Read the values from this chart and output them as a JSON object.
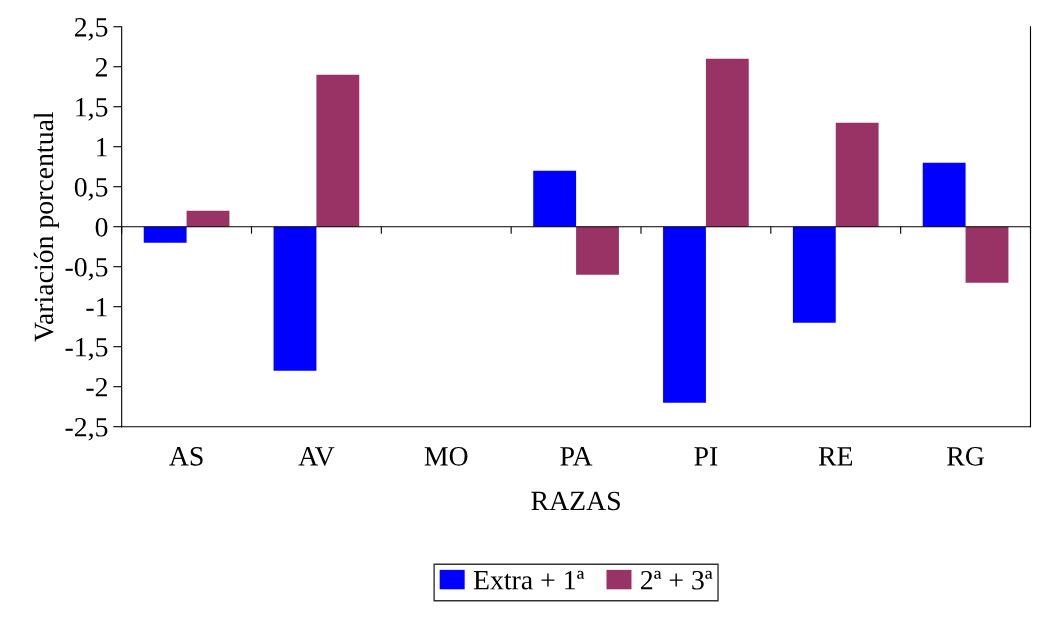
{
  "chart_data": {
    "type": "bar",
    "xlabel": "RAZAS",
    "ylabel": "Variación porcentual",
    "categories": [
      "AS",
      "AV",
      "MO",
      "PA",
      "PI",
      "RE",
      "RG"
    ],
    "series": [
      {
        "name": "Extra + 1ª",
        "color": "#0000ff",
        "values": [
          -0.2,
          -1.8,
          0,
          0.7,
          -2.2,
          -1.2,
          0.8
        ]
      },
      {
        "name": "2ª + 3ª",
        "color": "#993366",
        "values": [
          0.2,
          1.9,
          0,
          -0.6,
          2.1,
          1.3,
          -0.7
        ]
      }
    ],
    "ylim": [
      -2.5,
      2.5
    ],
    "yticks": [
      {
        "value": -2.5,
        "label": "-2,5"
      },
      -2,
      {
        "value": -1.5,
        "label": "-1,5"
      },
      -1,
      {
        "value": -0.5,
        "label": "-0,5"
      },
      0,
      {
        "value": 0.5,
        "label": "0,5"
      },
      1,
      {
        "value": 1.5,
        "label": "1,5"
      },
      2,
      {
        "value": 2.5,
        "label": "2,5"
      }
    ],
    "legend": "bottom"
  }
}
